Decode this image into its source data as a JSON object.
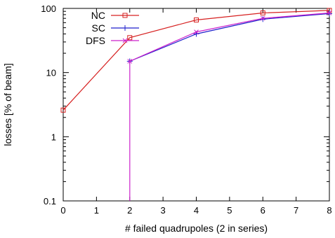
{
  "chart_data": {
    "type": "line",
    "title": "",
    "xlabel": "# failed quadrupoles (2 in series)",
    "ylabel": "losses [% of beam]",
    "xlim": [
      0,
      8
    ],
    "ylim": [
      0.1,
      100
    ],
    "yscale": "log",
    "grid": false,
    "legend_position": "top-left",
    "x_ticks": [
      0,
      1,
      2,
      3,
      4,
      5,
      6,
      7,
      8
    ],
    "x_tick_labels": [
      "0",
      "1",
      "2",
      "3",
      "4",
      "5",
      "6",
      "7",
      "8"
    ],
    "y_ticks": [
      0.1,
      1,
      10,
      100
    ],
    "y_tick_labels": [
      "0.1",
      "1",
      "10",
      "100"
    ],
    "series": [
      {
        "name": "NC",
        "color": "#d62020",
        "marker": "square",
        "x": [
          0,
          2,
          4,
          6,
          8
        ],
        "y": [
          2.6,
          35,
          66,
          85,
          93
        ]
      },
      {
        "name": "SC",
        "color": "#1f1fcc",
        "marker": "plus",
        "x": [
          2,
          4,
          6,
          8
        ],
        "y": [
          15,
          40,
          68,
          83
        ]
      },
      {
        "name": "DFS",
        "color": "#cc22cc",
        "marker": "x",
        "x": [
          2,
          2,
          4,
          6,
          8
        ],
        "y": [
          0.1,
          15,
          43,
          70,
          85
        ]
      }
    ]
  }
}
